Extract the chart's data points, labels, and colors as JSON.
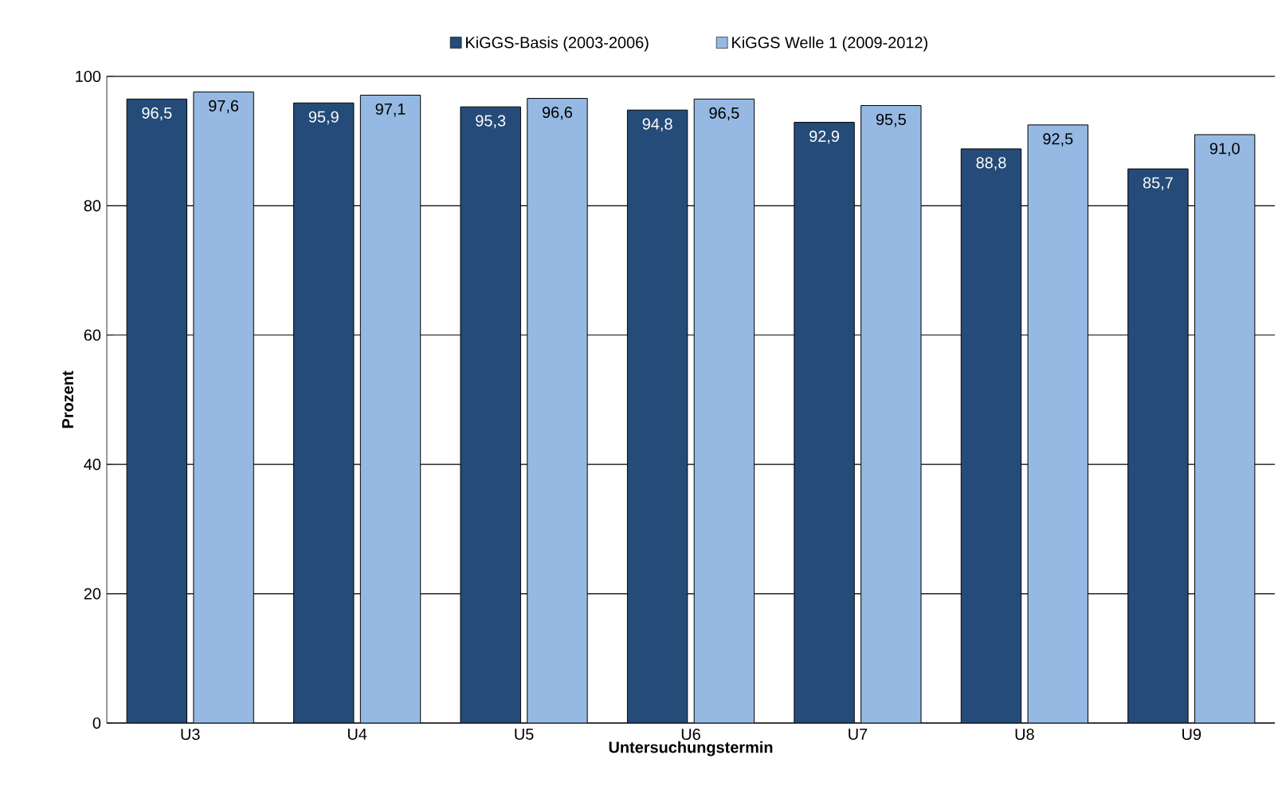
{
  "chart_data": {
    "type": "bar",
    "xlabel": "Untersuchungstermin",
    "ylabel": "Prozent",
    "categories": [
      "U3",
      "U4",
      "U5",
      "U6",
      "U7",
      "U8",
      "U9"
    ],
    "series": [
      {
        "name": "KiGGS-Basis (2003-2006)",
        "color": "#254b78",
        "values": [
          96.5,
          95.9,
          95.3,
          94.8,
          92.9,
          88.8,
          85.7
        ],
        "value_labels": [
          "96,5",
          "95,9",
          "95,3",
          "94,8",
          "92,9",
          "88,8",
          "85,7"
        ]
      },
      {
        "name": "KiGGS Welle 1 (2009-2012)",
        "color": "#95b9e3",
        "values": [
          97.6,
          97.1,
          96.6,
          96.5,
          95.5,
          92.5,
          91.0
        ],
        "value_labels": [
          "97,6",
          "97,1",
          "96,6",
          "96,5",
          "95,5",
          "92,5",
          "91,0"
        ]
      }
    ],
    "ylim": [
      0,
      100
    ],
    "yticks": [
      0,
      20,
      40,
      60,
      80,
      100
    ],
    "grid": "y",
    "legend": "top"
  }
}
